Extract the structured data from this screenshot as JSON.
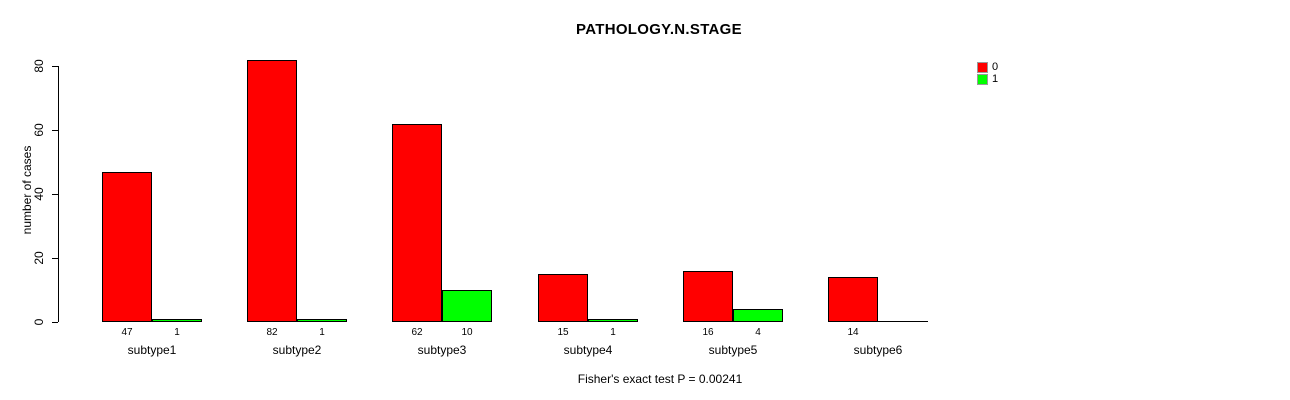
{
  "chart_data": {
    "type": "bar",
    "title": "PATHOLOGY.N.STAGE",
    "ylabel": "number of cases",
    "xlabel": "",
    "caption": "Fisher's exact test P = 0.00241",
    "categories": [
      "subtype1",
      "subtype2",
      "subtype3",
      "subtype4",
      "subtype5",
      "subtype6"
    ],
    "series": [
      {
        "name": "0",
        "color": "#ff0000",
        "values": [
          47,
          82,
          62,
          15,
          16,
          14
        ],
        "labels": [
          "47",
          "82",
          "62",
          "15",
          "16",
          "14"
        ]
      },
      {
        "name": "1",
        "color": "#00ff00",
        "values": [
          1,
          1,
          10,
          1,
          4,
          0
        ],
        "labels": [
          "1",
          "1",
          "10",
          "1",
          "4",
          ""
        ]
      }
    ],
    "yticks": [
      0,
      20,
      40,
      60,
      80
    ],
    "ylim": [
      0,
      80
    ],
    "grid": false,
    "legend_position": "top-right",
    "bar_border_color": "#000000",
    "background_color": "#ffffff"
  }
}
